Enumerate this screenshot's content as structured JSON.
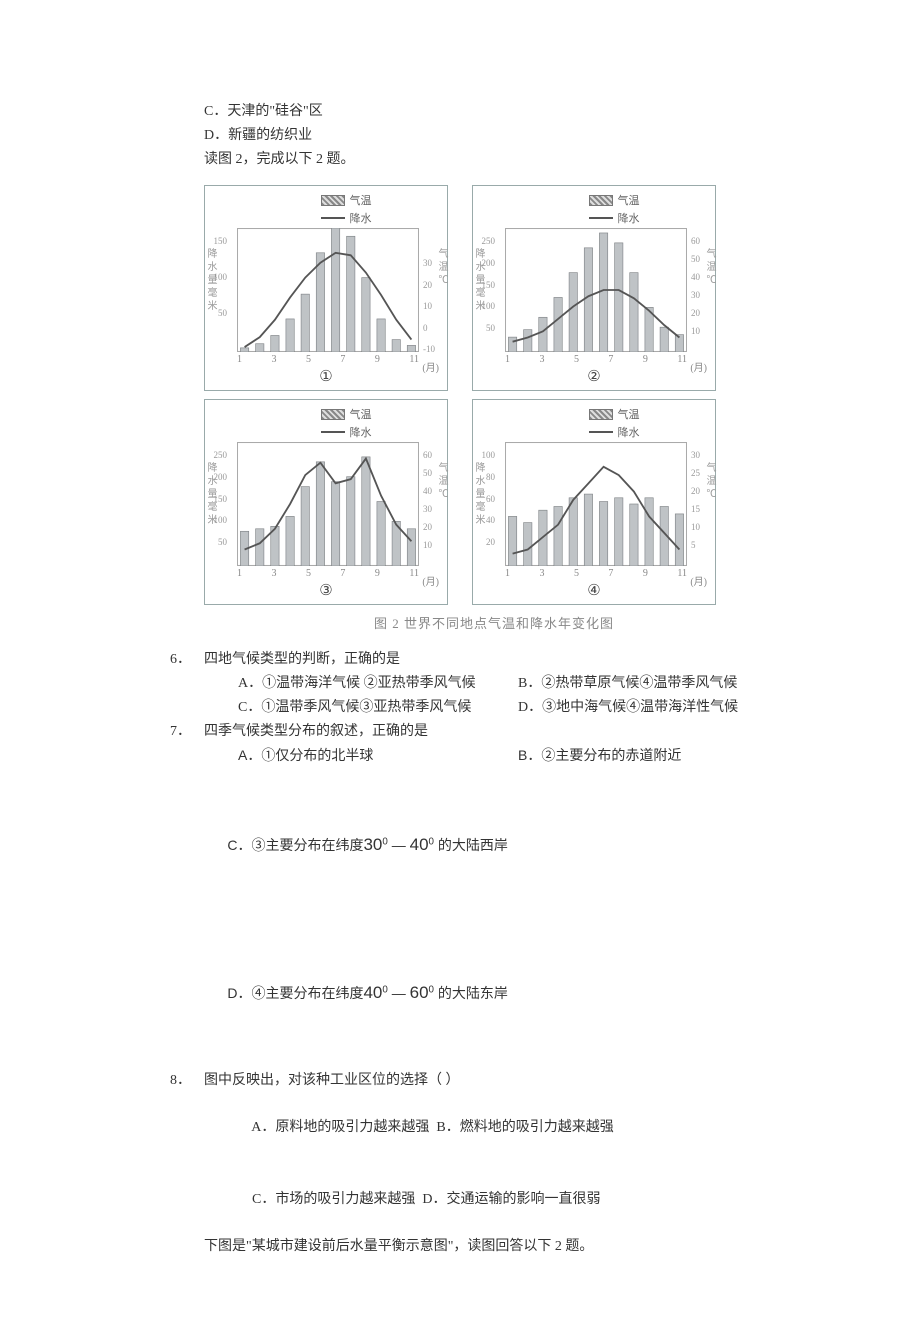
{
  "top_options": {
    "c": "C．天津的\"硅谷\"区",
    "d": "D．新疆的纺织业"
  },
  "fig_intro": "读图 2，完成以下 2 题。",
  "figure": {
    "caption": "图 2   世界不同地点气温和降水年变化图",
    "legend_bar": "气温",
    "legend_line": "降水",
    "ylab_left": "降水量毫米",
    "ylab_right": "气温℃",
    "month_label": "(月)",
    "xticks": [
      "1",
      "3",
      "5",
      "7",
      "9",
      "11"
    ],
    "panel_labels": [
      "①",
      "②",
      "③",
      "④"
    ],
    "border_color": "#99a5a8",
    "tick_color": "#999999",
    "bar_fill": "repeating-linear-gradient(45deg,#888,#888 2px,#ddd 2px,#ddd 4px)",
    "line_color": "#555555",
    "charts": [
      {
        "left_max": 150,
        "left_ticks": [
          50,
          100,
          150
        ],
        "right_max": 40,
        "right_min": -10,
        "right_ticks": [
          -10,
          0,
          10,
          20,
          30
        ],
        "bars": [
          5,
          10,
          20,
          40,
          70,
          120,
          150,
          140,
          90,
          40,
          15,
          8
        ],
        "line": [
          -8,
          -4,
          3,
          12,
          20,
          26,
          30,
          29,
          22,
          13,
          3,
          -5
        ]
      },
      {
        "left_max": 250,
        "left_ticks": [
          50,
          100,
          150,
          200,
          250
        ],
        "right_max": 60,
        "right_min": 0,
        "right_ticks": [
          10,
          20,
          30,
          40,
          50,
          60
        ],
        "bars": [
          30,
          45,
          70,
          110,
          160,
          210,
          240,
          220,
          160,
          90,
          50,
          35
        ],
        "line": [
          5,
          7,
          10,
          16,
          22,
          27,
          30,
          30,
          26,
          20,
          13,
          7
        ]
      },
      {
        "left_max": 250,
        "left_ticks": [
          50,
          100,
          150,
          200,
          250
        ],
        "right_max": 60,
        "right_min": 0,
        "right_ticks": [
          10,
          20,
          30,
          40,
          50,
          60
        ],
        "bars": [
          70,
          75,
          80,
          100,
          160,
          210,
          170,
          180,
          220,
          130,
          90,
          75
        ],
        "line": [
          8,
          11,
          18,
          30,
          44,
          50,
          40,
          42,
          52,
          34,
          20,
          12
        ]
      },
      {
        "left_max": 100,
        "left_ticks": [
          20,
          40,
          60,
          80,
          100
        ],
        "right_max": 30,
        "right_min": 0,
        "right_ticks": [
          5,
          10,
          15,
          20,
          25,
          30
        ],
        "bars": [
          40,
          35,
          45,
          48,
          55,
          58,
          52,
          55,
          50,
          55,
          48,
          42
        ],
        "line": [
          3,
          4,
          7,
          10,
          16,
          20,
          24,
          22,
          18,
          12,
          8,
          4
        ]
      }
    ]
  },
  "q6": {
    "num": "6．",
    "stem": "四地气候类型的判断，正确的是",
    "a": "A．①温带海洋气候 ②亚热带季风气候",
    "b": "B．②热带草原气候④温带季风气候",
    "c": "C．①温带季风气候③亚热带季风气候",
    "d": "D．③地中海气候④温带海洋性气候"
  },
  "q7": {
    "num": "7．",
    "stem": "四季气候类型分布的叙述，正确的是",
    "a": "A．①仅分布的北半球",
    "b": "B．②主要分布的赤道附近",
    "c_pre": "C．③主要分布在纬度",
    "c_deg1": "30",
    "c_deg2": "40",
    "c_post": " 的大陆西岸",
    "d_pre": "D．④主要分布在纬度",
    "d_deg1": "40",
    "d_deg2": "60",
    "d_post": " 的大陆东岸"
  },
  "q8": {
    "num": "8．",
    "stem": "图中反映出，对该种工业区位的选择（     ）",
    "a": "A．原料地的吸引力越来越强",
    "b": "B．燃料地的吸引力越来越强",
    "c": "C．市场的吸引力越来越强",
    "d": "D．交通运输的影响一直很弱"
  },
  "next_intro": "下图是\"某城市建设前后水量平衡示意图\"，读图回答以下 2 题。"
}
